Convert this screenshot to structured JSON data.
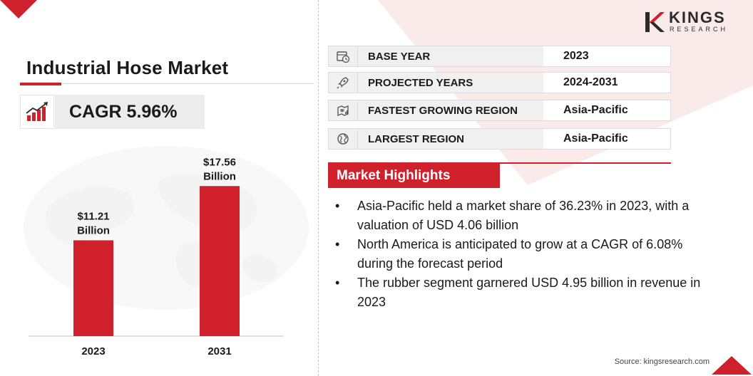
{
  "title": "Industrial Hose Market",
  "cagr": "CAGR 5.96%",
  "logo": {
    "main": "KINGS",
    "sub": "RESEARCH"
  },
  "chart_data": {
    "type": "bar",
    "categories": [
      "2023",
      "2031"
    ],
    "values": [
      11.21,
      17.56
    ],
    "value_labels": [
      [
        "$11.21",
        "Billion"
      ],
      [
        "$17.56",
        "Billion"
      ]
    ],
    "ylim": [
      0,
      21
    ],
    "grid": false,
    "bar_color": "#d0202c"
  },
  "info_rows": [
    {
      "icon": "calendar-clock-icon",
      "label": "BASE YEAR",
      "value": "2023"
    },
    {
      "icon": "rocket-icon",
      "label": "PROJECTED YEARS",
      "value": "2024-2031"
    },
    {
      "icon": "region-map-icon",
      "label": "FASTEST GROWING REGION",
      "value": "Asia-Pacific"
    },
    {
      "icon": "globe-icon",
      "label": "LARGEST REGION",
      "value": "Asia-Pacific"
    }
  ],
  "highlights": {
    "heading": "Market Highlights",
    "items": [
      "Asia-Pacific held a market share of 36.23% in 2023, with a valuation of USD 4.06 billion",
      "North America is anticipated to grow at a CAGR of 6.08% during the forecast period",
      "The rubber segment garnered USD 4.95 billion in revenue in 2023"
    ]
  },
  "source": "Source: kingsresearch.com",
  "colors": {
    "accent": "#d0202c",
    "panel": "#f0f0f0"
  }
}
